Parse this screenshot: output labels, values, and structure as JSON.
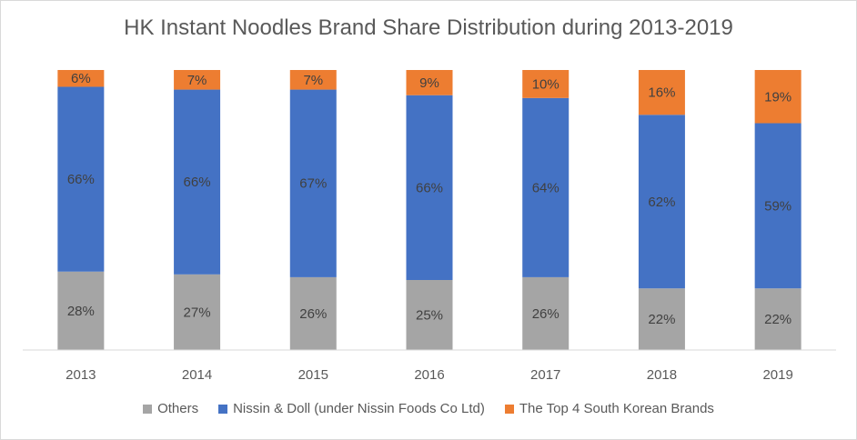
{
  "chart_data": {
    "type": "bar",
    "stacked": true,
    "title": "HK Instant Noodles Brand Share Distribution during 2013-2019",
    "xlabel": "",
    "ylabel": "",
    "ylim": [
      0,
      100
    ],
    "grid": false,
    "legend_position": "bottom",
    "categories": [
      "2013",
      "2014",
      "2015",
      "2016",
      "2017",
      "2018",
      "2019"
    ],
    "series": [
      {
        "name": "Others",
        "color": "#a5a5a5",
        "values": [
          28,
          27,
          26,
          25,
          26,
          22,
          22
        ]
      },
      {
        "name": "Nissin & Doll (under Nissin Foods Co Ltd)",
        "color": "#4472c4",
        "values": [
          66,
          66,
          67,
          66,
          64,
          62,
          59
        ]
      },
      {
        "name": "The Top 4 South Korean Brands",
        "color": "#ed7d31",
        "values": [
          6,
          7,
          7,
          9,
          10,
          16,
          19
        ]
      }
    ]
  }
}
